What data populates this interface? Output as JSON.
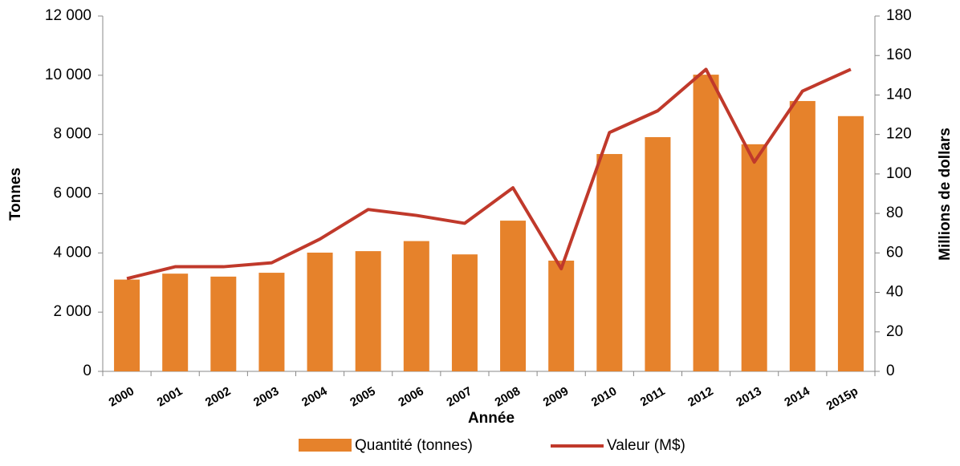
{
  "chart_data": {
    "type": "bar-line",
    "categories": [
      "2000",
      "2001",
      "2002",
      "2003",
      "2004",
      "2005",
      "2006",
      "2007",
      "2008",
      "2009",
      "2010",
      "2011",
      "2012",
      "2013",
      "2014",
      "2015p"
    ],
    "series": [
      {
        "name": "Quantité (tonnes)",
        "color": "#e6822b",
        "type": "bar",
        "values": [
          3100,
          3300,
          3200,
          3330,
          4010,
          4060,
          4400,
          3950,
          5090,
          3740,
          7340,
          7910,
          10020,
          7670,
          9130,
          8620
        ]
      },
      {
        "name": "Valeur (M$)",
        "color": "#c0392b",
        "type": "line",
        "axis": "y2",
        "values": [
          47,
          53,
          53,
          55,
          67,
          82,
          79,
          75,
          93,
          52,
          121,
          132,
          153,
          106,
          142,
          153
        ]
      }
    ],
    "ylabel": "Tonnes",
    "y2label": "Millions de dollars",
    "xlabel": "Année",
    "ylim": [
      0,
      12000
    ],
    "yticks": [
      0,
      {
        "value": 2000,
        "label": "2 000"
      },
      {
        "value": 4000,
        "label": "4 000"
      },
      {
        "value": 6000,
        "label": "6 000"
      },
      {
        "value": 8000,
        "label": "8 000"
      },
      {
        "value": 10000,
        "label": "10 000"
      },
      {
        "value": 12000,
        "label": "12 000"
      }
    ],
    "y2lim": [
      0,
      180
    ],
    "y2ticks": [
      0,
      20,
      40,
      60,
      80,
      100,
      120,
      140,
      160,
      180
    ],
    "legend": "bottom"
  }
}
